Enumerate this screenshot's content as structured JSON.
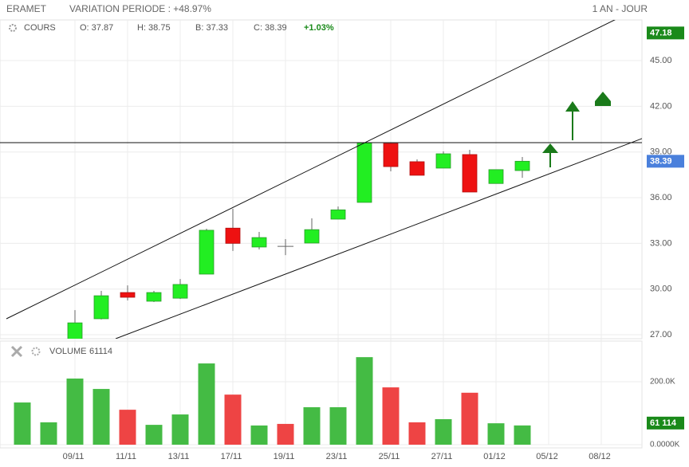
{
  "header": {
    "symbol": "ERAMET",
    "variation": "VARIATION PERIODE : +48.97%",
    "period": "1 AN - JOUR"
  },
  "chart_data": [
    {
      "type": "candlestick",
      "title": "COURS",
      "legend": [
        "O: 37.87",
        "H: 38.75",
        "B: 37.33",
        "C: 38.39"
      ],
      "change": "+1.03%",
      "categories": [
        null,
        null,
        "09/11",
        null,
        "11/11",
        null,
        "13/11",
        null,
        "17/11",
        null,
        "19/11",
        null,
        "23/11",
        null,
        "25/11",
        null,
        "27/11",
        null,
        "01/12",
        null,
        "05/12",
        null,
        "08/12",
        null
      ],
      "open": [
        null,
        null,
        26.6,
        28.05,
        29.77,
        29.2,
        29.4,
        30.98,
        34.0,
        32.76,
        32.8,
        33.02,
        34.59,
        35.69,
        39.56,
        38.36,
        37.94,
        38.83,
        36.93,
        37.78,
        null,
        null,
        null,
        null
      ],
      "high": [
        null,
        null,
        28.62,
        29.88,
        30.24,
        29.88,
        30.66,
        33.96,
        35.27,
        33.75,
        33.28,
        34.64,
        35.42,
        39.6,
        39.6,
        38.51,
        39.04,
        39.14,
        37.84,
        38.67,
        null,
        null,
        null,
        null
      ],
      "low": [
        null,
        null,
        26.5,
        28.0,
        29.25,
        29.15,
        29.35,
        30.98,
        32.5,
        32.6,
        32.23,
        33.02,
        34.59,
        35.69,
        37.73,
        37.47,
        37.94,
        36.37,
        36.93,
        37.3,
        null,
        null,
        null,
        null
      ],
      "close": [
        null,
        null,
        27.78,
        29.56,
        29.46,
        29.77,
        30.3,
        33.86,
        33.0,
        33.38,
        32.8,
        33.9,
        35.2,
        39.6,
        38.04,
        37.47,
        38.88,
        36.37,
        37.84,
        38.39,
        null,
        null,
        null,
        null
      ],
      "up_color": "#22ee22",
      "down_color": "#ee1111",
      "ylim": [
        26.74,
        47.67
      ],
      "yticks": [
        {
          "value": 27,
          "label": "27.00"
        },
        {
          "value": 30,
          "label": "30.00"
        },
        {
          "value": 33,
          "label": "33.00"
        },
        {
          "value": 36,
          "label": "36.00"
        },
        {
          "value": 39,
          "label": "39.00"
        },
        {
          "value": 42,
          "label": "42.00"
        },
        {
          "value": 45,
          "label": "45.00"
        }
      ],
      "max_marker": 47.18,
      "last_marker": 38.39,
      "grid": true
    },
    {
      "type": "bar",
      "title": "VOLUME",
      "last": 61114,
      "values": [
        134000,
        71000,
        210000,
        177000,
        111000,
        63000,
        96000,
        258000,
        159000,
        61000,
        66000,
        119000,
        119000,
        278000,
        182000,
        71000,
        81000,
        165000,
        68000,
        61114
      ],
      "colors": [
        "#44bb44",
        "#44bb44",
        "#44bb44",
        "#44bb44",
        "#ee4444",
        "#44bb44",
        "#44bb44",
        "#44bb44",
        "#ee4444",
        "#44bb44",
        "#ee4444",
        "#44bb44",
        "#44bb44",
        "#44bb44",
        "#ee4444",
        "#ee4444",
        "#44bb44",
        "#ee4444",
        "#44bb44",
        "#44bb44"
      ],
      "last_label": "61 114",
      "ylim": [
        0,
        329000
      ],
      "yticks": [
        {
          "value": 0,
          "label": "0.0000K"
        },
        {
          "value": 200000,
          "label": "200.0K"
        }
      ]
    }
  ]
}
